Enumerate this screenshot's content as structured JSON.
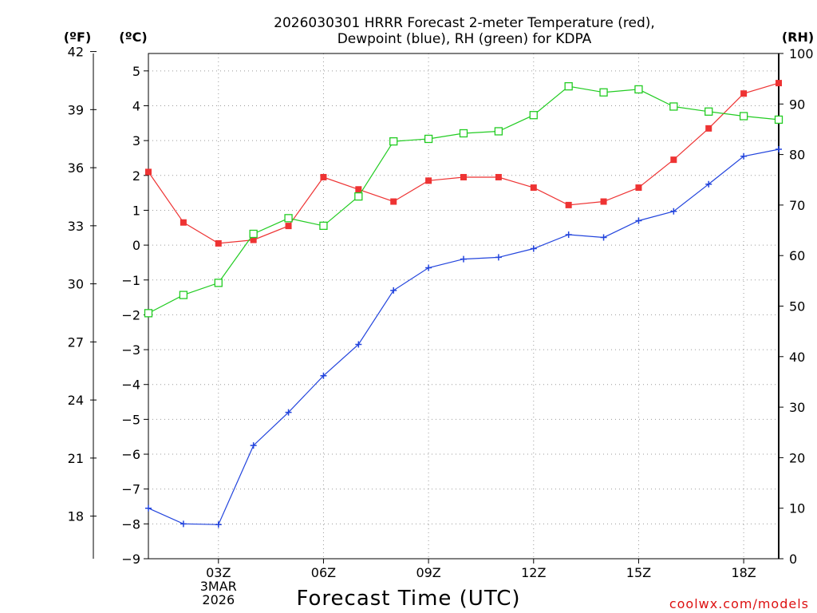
{
  "chart_data": {
    "type": "line",
    "title_line1": "2026030301 HRRR Forecast 2-meter Temperature (red),",
    "title_line2": "Dewpoint (blue), RH (green) for KDPA",
    "units": {
      "fahrenheit": "(ºF)",
      "celsius": "(ºC)",
      "rh": "(RH)"
    },
    "xlabel": "Forecast Time (UTC)",
    "credit": "coolwx.com/models",
    "x_range": [
      1,
      19
    ],
    "x_ticks": [
      {
        "hour": 3,
        "lines": [
          "03Z",
          "3MAR",
          "2026"
        ]
      },
      {
        "hour": 6,
        "lines": [
          "06Z"
        ]
      },
      {
        "hour": 9,
        "lines": [
          "09Z"
        ]
      },
      {
        "hour": 12,
        "lines": [
          "12Z"
        ]
      },
      {
        "hour": 15,
        "lines": [
          "15Z"
        ]
      },
      {
        "hour": 18,
        "lines": [
          "18Z"
        ]
      }
    ],
    "celsius_axis": {
      "range": [
        -9,
        5.5
      ],
      "ticks": [
        "5",
        "4",
        "3",
        "2",
        "1",
        "0",
        "−1",
        "−2",
        "−3",
        "−4",
        "−5",
        "−6",
        "−7",
        "−8",
        "−9"
      ]
    },
    "fahrenheit_axis": {
      "ticks": [
        "42",
        "39",
        "36",
        "33",
        "30",
        "27",
        "24",
        "21",
        "18"
      ]
    },
    "rh_axis": {
      "range": [
        0,
        100
      ],
      "ticks": [
        "100",
        "90",
        "80",
        "70",
        "60",
        "50",
        "40",
        "30",
        "20",
        "10",
        "0"
      ]
    },
    "x": [
      1,
      2,
      3,
      4,
      5,
      6,
      7,
      8,
      9,
      10,
      11,
      12,
      13,
      14,
      15,
      16,
      17,
      18,
      19
    ],
    "series": [
      {
        "name": "Temperature",
        "axis": "celsius",
        "color": "#ee3333",
        "marker": "filled-square",
        "values": [
          2.1,
          0.65,
          0.05,
          0.15,
          0.55,
          1.95,
          1.6,
          1.25,
          1.85,
          1.95,
          1.95,
          1.65,
          1.15,
          1.25,
          1.65,
          2.45,
          3.35,
          4.35,
          4.65
        ]
      },
      {
        "name": "Dewpoint",
        "axis": "celsius",
        "color": "#2244dd",
        "marker": "plus",
        "values": [
          -7.55,
          -8.0,
          -8.02,
          -5.75,
          -4.8,
          -3.75,
          -2.85,
          -1.3,
          -0.65,
          -0.4,
          -0.35,
          -0.1,
          0.3,
          0.22,
          0.7,
          0.97,
          1.75,
          2.55,
          2.75
        ]
      },
      {
        "name": "RH",
        "axis": "rh",
        "color": "#22cc22",
        "marker": "open-square",
        "values": [
          48.6,
          52.2,
          54.6,
          64.3,
          67.4,
          65.9,
          71.7,
          82.6,
          83.1,
          84.2,
          84.6,
          87.8,
          93.5,
          92.3,
          92.9,
          89.5,
          88.5,
          87.6,
          86.9
        ]
      }
    ]
  }
}
